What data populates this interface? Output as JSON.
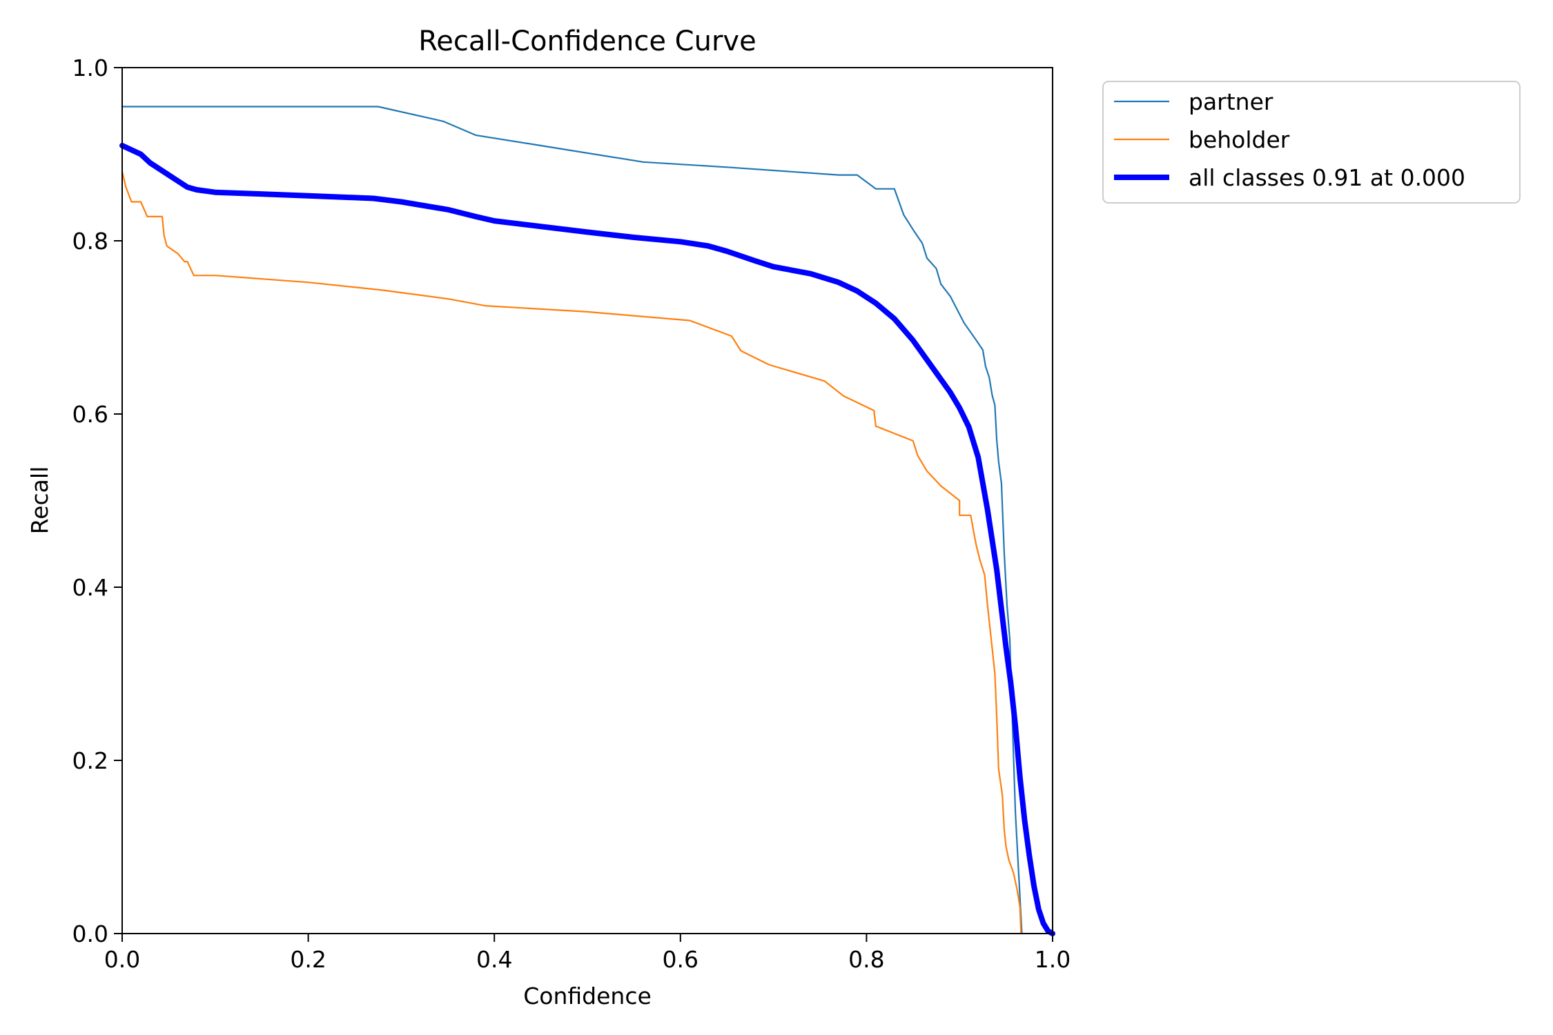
{
  "chart_data": {
    "type": "line",
    "title": "Recall-Confidence Curve",
    "xlabel": "Confidence",
    "ylabel": "Recall",
    "xlim": [
      0,
      1
    ],
    "ylim": [
      0,
      1
    ],
    "xticks": [
      "0.0",
      "0.2",
      "0.4",
      "0.6",
      "0.8",
      "1.0"
    ],
    "yticks": [
      "0.0",
      "0.2",
      "0.4",
      "0.6",
      "0.8",
      "1.0"
    ],
    "grid": false,
    "legend_position": "outside-top-right",
    "series": [
      {
        "name": "partner",
        "color": "#1f77b4",
        "points": [
          [
            0,
            0.955
          ],
          [
            0.275,
            0.955
          ],
          [
            0.345,
            0.938
          ],
          [
            0.38,
            0.922
          ],
          [
            0.45,
            0.91
          ],
          [
            0.56,
            0.891
          ],
          [
            0.65,
            0.885
          ],
          [
            0.77,
            0.876
          ],
          [
            0.79,
            0.876
          ],
          [
            0.81,
            0.86
          ],
          [
            0.83,
            0.86
          ],
          [
            0.84,
            0.83
          ],
          [
            0.85,
            0.813
          ],
          [
            0.86,
            0.797
          ],
          [
            0.865,
            0.78
          ],
          [
            0.875,
            0.768
          ],
          [
            0.88,
            0.75
          ],
          [
            0.89,
            0.736
          ],
          [
            0.905,
            0.705
          ],
          [
            0.918,
            0.685
          ],
          [
            0.925,
            0.674
          ],
          [
            0.928,
            0.655
          ],
          [
            0.932,
            0.642
          ],
          [
            0.935,
            0.622
          ],
          [
            0.938,
            0.61
          ],
          [
            0.94,
            0.57
          ],
          [
            0.942,
            0.545
          ],
          [
            0.945,
            0.52
          ],
          [
            0.948,
            0.44
          ],
          [
            0.951,
            0.38
          ],
          [
            0.954,
            0.34
          ],
          [
            0.957,
            0.24
          ],
          [
            0.96,
            0.14
          ],
          [
            0.964,
            0.06
          ],
          [
            0.967,
            0.0
          ]
        ]
      },
      {
        "name": "beholder",
        "color": "#ff7f0e",
        "points": [
          [
            0,
            0.88
          ],
          [
            0.004,
            0.862
          ],
          [
            0.01,
            0.845
          ],
          [
            0.02,
            0.845
          ],
          [
            0.027,
            0.828
          ],
          [
            0.043,
            0.828
          ],
          [
            0.045,
            0.806
          ],
          [
            0.048,
            0.794
          ],
          [
            0.06,
            0.785
          ],
          [
            0.067,
            0.776
          ],
          [
            0.07,
            0.776
          ],
          [
            0.077,
            0.76
          ],
          [
            0.1,
            0.76
          ],
          [
            0.2,
            0.752
          ],
          [
            0.28,
            0.743
          ],
          [
            0.35,
            0.733
          ],
          [
            0.39,
            0.725
          ],
          [
            0.5,
            0.718
          ],
          [
            0.61,
            0.708
          ],
          [
            0.655,
            0.69
          ],
          [
            0.665,
            0.673
          ],
          [
            0.695,
            0.657
          ],
          [
            0.755,
            0.638
          ],
          [
            0.775,
            0.621
          ],
          [
            0.808,
            0.604
          ],
          [
            0.81,
            0.586
          ],
          [
            0.85,
            0.569
          ],
          [
            0.855,
            0.552
          ],
          [
            0.865,
            0.534
          ],
          [
            0.88,
            0.517
          ],
          [
            0.9,
            0.5
          ],
          [
            0.9,
            0.483
          ],
          [
            0.912,
            0.483
          ],
          [
            0.915,
            0.465
          ],
          [
            0.918,
            0.448
          ],
          [
            0.922,
            0.431
          ],
          [
            0.927,
            0.414
          ],
          [
            0.93,
            0.38
          ],
          [
            0.935,
            0.33
          ],
          [
            0.938,
            0.3
          ],
          [
            0.94,
            0.25
          ],
          [
            0.942,
            0.19
          ],
          [
            0.946,
            0.16
          ],
          [
            0.948,
            0.12
          ],
          [
            0.95,
            0.1
          ],
          [
            0.953,
            0.085
          ],
          [
            0.958,
            0.07
          ],
          [
            0.962,
            0.05
          ],
          [
            0.965,
            0.03
          ],
          [
            0.966,
            0.0
          ]
        ]
      },
      {
        "name": "all classes 0.91 at 0.000",
        "color": "#0000ff",
        "bold": true,
        "points": [
          [
            0,
            0.91
          ],
          [
            0.02,
            0.9
          ],
          [
            0.03,
            0.89
          ],
          [
            0.05,
            0.876
          ],
          [
            0.07,
            0.862
          ],
          [
            0.08,
            0.859
          ],
          [
            0.1,
            0.856
          ],
          [
            0.2,
            0.852
          ],
          [
            0.27,
            0.849
          ],
          [
            0.3,
            0.845
          ],
          [
            0.35,
            0.836
          ],
          [
            0.38,
            0.828
          ],
          [
            0.4,
            0.823
          ],
          [
            0.5,
            0.81
          ],
          [
            0.55,
            0.804
          ],
          [
            0.6,
            0.799
          ],
          [
            0.63,
            0.794
          ],
          [
            0.65,
            0.788
          ],
          [
            0.68,
            0.777
          ],
          [
            0.7,
            0.77
          ],
          [
            0.74,
            0.762
          ],
          [
            0.77,
            0.752
          ],
          [
            0.79,
            0.742
          ],
          [
            0.81,
            0.728
          ],
          [
            0.83,
            0.71
          ],
          [
            0.85,
            0.685
          ],
          [
            0.87,
            0.655
          ],
          [
            0.89,
            0.625
          ],
          [
            0.9,
            0.607
          ],
          [
            0.91,
            0.585
          ],
          [
            0.92,
            0.55
          ],
          [
            0.93,
            0.49
          ],
          [
            0.94,
            0.42
          ],
          [
            0.95,
            0.33
          ],
          [
            0.955,
            0.29
          ],
          [
            0.96,
            0.24
          ],
          [
            0.965,
            0.18
          ],
          [
            0.97,
            0.13
          ],
          [
            0.975,
            0.09
          ],
          [
            0.98,
            0.055
          ],
          [
            0.985,
            0.028
          ],
          [
            0.99,
            0.012
          ],
          [
            0.995,
            0.003
          ],
          [
            1.0,
            0.0
          ]
        ]
      }
    ]
  }
}
